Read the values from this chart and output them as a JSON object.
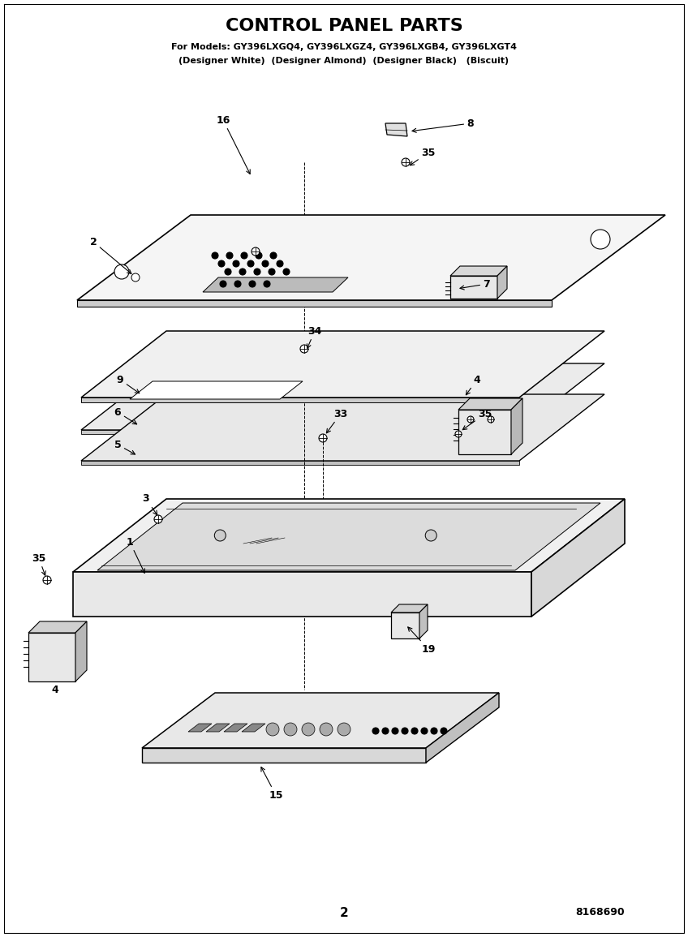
{
  "title": "CONTROL PANEL PARTS",
  "subtitle1": "For Models: GY396LXGQ4, GY396LXGZ4, GY396LXGB4, GY396LXGT4",
  "subtitle2": "(Designer White)  (Designer Almond)  (Designer Black)   (Biscuit)",
  "page_number": "2",
  "doc_number": "8168690",
  "bg_color": "#ffffff",
  "shear": 0.18
}
